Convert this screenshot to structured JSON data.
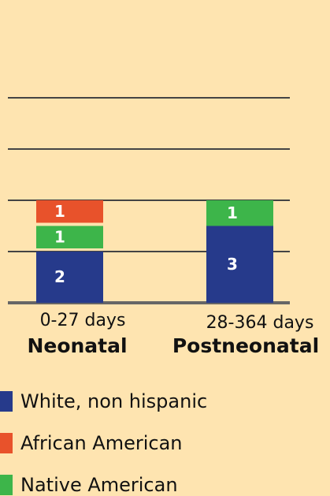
{
  "chart_data": {
    "type": "stacked_bar",
    "categories": [
      "0-27 days",
      "28-364 days"
    ],
    "category_subtitles": [
      "Neonatal",
      "Postneonatal"
    ],
    "series": [
      {
        "name": "White, non hispanic",
        "color": "#263a8b",
        "values": [
          2,
          3
        ]
      },
      {
        "name": "Native American",
        "color": "#3db54a",
        "values": [
          1,
          1
        ]
      },
      {
        "name": "African American",
        "color": "#e8522b",
        "values": [
          1,
          0
        ]
      }
    ],
    "ylim": [
      0,
      8
    ],
    "yticks": [
      0,
      2,
      4,
      6,
      8
    ],
    "grid": true
  }
}
